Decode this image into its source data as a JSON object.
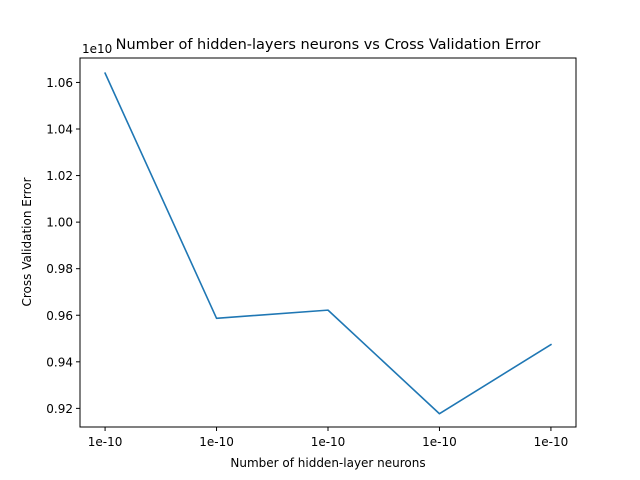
{
  "chart_data": {
    "type": "line",
    "title": "Number of hidden-layers neurons vs Cross Validation Error",
    "xlabel": "Number of hidden-layer neurons",
    "ylabel": "Cross Validation Error",
    "y_offset_label": "1e10",
    "x": [
      1,
      2,
      3,
      4,
      5
    ],
    "x_tick_labels": [
      "1e-10",
      "1e-10",
      "1e-10",
      "1e-10",
      "1e-10"
    ],
    "y_ticks": [
      0.92,
      0.94,
      0.96,
      0.98,
      1.0,
      1.02,
      1.04,
      1.06
    ],
    "y_tick_labels": [
      "0.92",
      "0.94",
      "0.96",
      "0.98",
      "1.00",
      "1.02",
      "1.04",
      "1.06"
    ],
    "ylim": [
      0.912,
      1.0705
    ],
    "series": [
      {
        "values": [
          1.064,
          0.9587,
          0.9622,
          0.9177,
          0.9474
        ],
        "color": "#1f77b4"
      }
    ],
    "grid": false,
    "legend": "none"
  }
}
